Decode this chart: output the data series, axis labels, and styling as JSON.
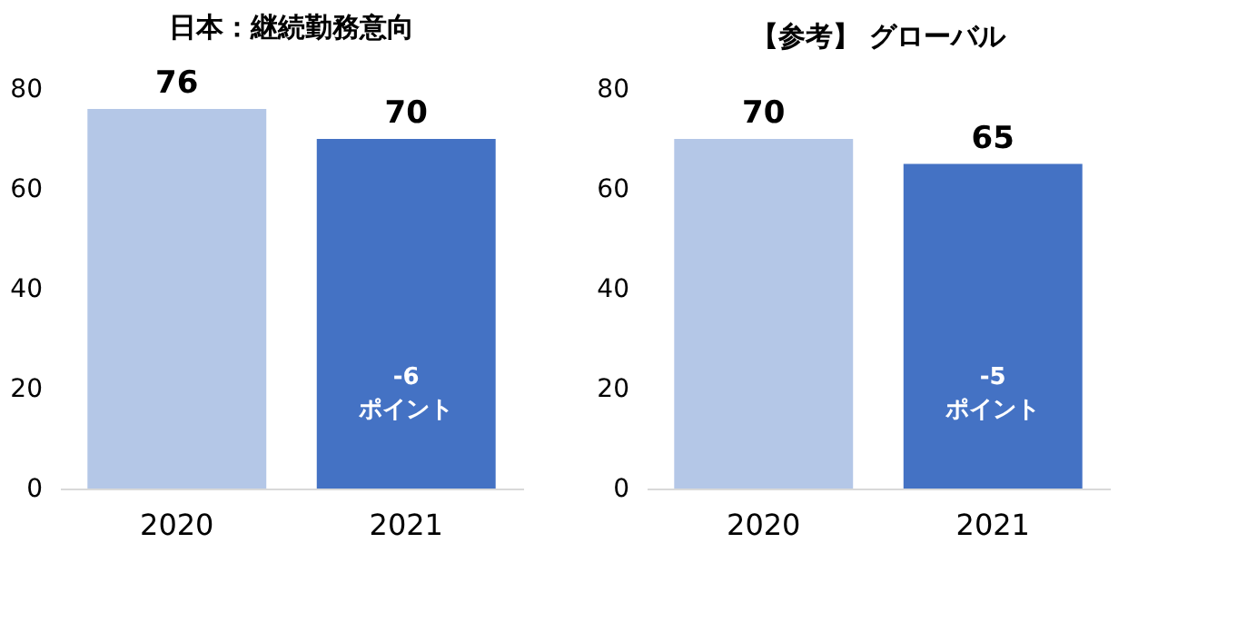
{
  "chart_data": [
    {
      "type": "bar",
      "title": "日本：継続勤務意向",
      "categories": [
        "2020",
        "2021"
      ],
      "values": [
        76,
        70
      ],
      "colors": [
        "#b4c7e7",
        "#4472c4"
      ],
      "ylim": [
        0,
        80
      ],
      "yticks": [
        0,
        20,
        40,
        60,
        80
      ],
      "grid": false,
      "data_labels": true,
      "annotations": [
        "-6\nポイント"
      ]
    },
    {
      "type": "bar",
      "title": "【参考】 グローバル",
      "categories": [
        "2020",
        "2021"
      ],
      "values": [
        70,
        65
      ],
      "colors": [
        "#b4c7e7",
        "#4472c4"
      ],
      "ylim": [
        0,
        80
      ],
      "yticks": [
        0,
        20,
        40,
        60,
        80
      ],
      "grid": false,
      "data_labels": true,
      "annotations": [
        "-5\nポイント"
      ]
    }
  ]
}
